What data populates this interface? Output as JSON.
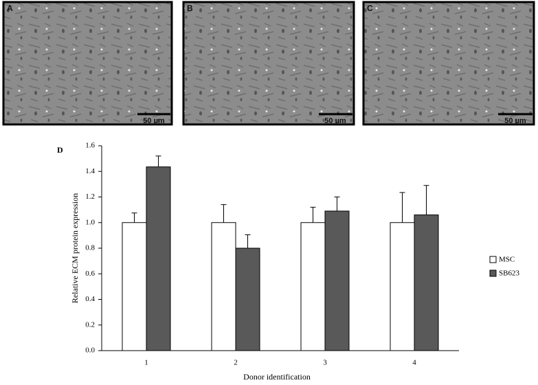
{
  "panels": [
    {
      "label": "A",
      "scale_bar": "50 µm"
    },
    {
      "label": "B",
      "scale_bar": "50 µm"
    },
    {
      "label": "C",
      "scale_bar": "50 µm"
    }
  ],
  "chart_data": {
    "type": "bar",
    "panel_label": "D",
    "x_label": "Donor identification",
    "y_label": "Relative ECM protein expression",
    "categories": [
      "1",
      "2",
      "3",
      "4"
    ],
    "series": [
      {
        "name": "MSC",
        "color": "#ffffff",
        "values": [
          1,
          1,
          1,
          1
        ],
        "errors": [
          0.075,
          0.14,
          0.12,
          0.235
        ]
      },
      {
        "name": "SB623",
        "color": "#595959",
        "values": [
          1.435,
          0.8,
          1.09,
          1.06
        ],
        "errors": [
          0.085,
          0.105,
          0.11,
          0.23
        ]
      }
    ],
    "ylim": [
      0,
      1.6
    ],
    "yticks": [
      {
        "value": 0,
        "label": "0.0"
      },
      0.2,
      0.4,
      0.6,
      0.8,
      {
        "value": 1,
        "label": "1.0"
      },
      1.2,
      1.4,
      1.6
    ],
    "legend": "right"
  }
}
